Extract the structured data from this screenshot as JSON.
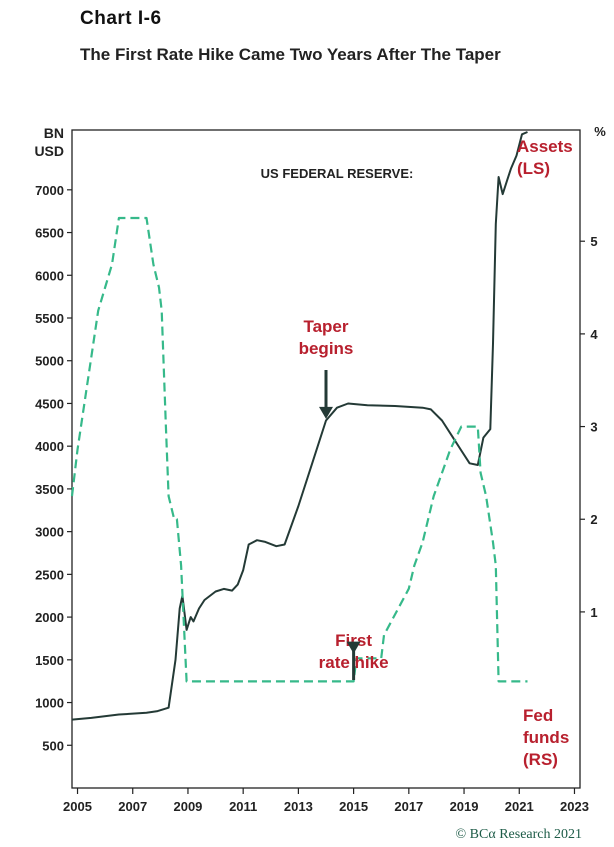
{
  "header": {
    "label": "Chart I-6",
    "title": "The First Rate Hike Came Two Years After The Taper"
  },
  "credit": "© BCα Research 2021",
  "chart_data": {
    "type": "line",
    "title": "US FEDERAL RESERVE:",
    "left_axis": {
      "unit": "BN USD",
      "ylim": [
        0,
        7700
      ],
      "ticks": [
        500,
        1000,
        1500,
        2000,
        2500,
        3000,
        3500,
        4000,
        4500,
        5000,
        5500,
        6000,
        6500,
        7000
      ]
    },
    "right_axis": {
      "unit": "%",
      "ylim": [
        -0.9,
        6.2
      ],
      "ticks": [
        1,
        2,
        3,
        4,
        5
      ]
    },
    "x_axis": {
      "xlim": [
        2004.8,
        2023.2
      ],
      "ticks": [
        2005,
        2007,
        2009,
        2011,
        2013,
        2015,
        2017,
        2019,
        2021,
        2023
      ]
    },
    "series": [
      {
        "name": "Assets (LS)",
        "axis": "left",
        "style": "solid",
        "color": "#243a36",
        "x": [
          2004.8,
          2005.5,
          2006.5,
          2007.5,
          2007.9,
          2008.3,
          2008.55,
          2008.7,
          2008.8,
          2008.95,
          2009.1,
          2009.2,
          2009.4,
          2009.6,
          2010.0,
          2010.3,
          2010.6,
          2010.8,
          2011.0,
          2011.2,
          2011.5,
          2011.8,
          2012.2,
          2012.5,
          2013.0,
          2013.5,
          2014.0,
          2014.4,
          2014.8,
          2015.5,
          2016.5,
          2017.5,
          2017.8,
          2018.2,
          2018.6,
          2018.9,
          2019.2,
          2019.5,
          2019.7,
          2019.95,
          2020.05,
          2020.15,
          2020.25,
          2020.4,
          2020.55,
          2020.7,
          2020.9,
          2021.1,
          2021.3
        ],
        "y": [
          800,
          820,
          860,
          880,
          900,
          940,
          1500,
          2100,
          2250,
          1850,
          2000,
          1950,
          2100,
          2200,
          2300,
          2330,
          2310,
          2380,
          2550,
          2850,
          2900,
          2880,
          2830,
          2850,
          3300,
          3800,
          4300,
          4450,
          4500,
          4480,
          4470,
          4450,
          4430,
          4300,
          4100,
          3950,
          3800,
          3780,
          4100,
          4200,
          5200,
          6600,
          7150,
          6950,
          7100,
          7250,
          7400,
          7650,
          7900
        ]
      },
      {
        "name": "Fed funds (RS)",
        "axis": "right",
        "style": "dashed",
        "color": "#36b98a",
        "x": [
          2004.8,
          2005.0,
          2005.25,
          2005.5,
          2005.75,
          2006.0,
          2006.25,
          2006.5,
          2007.0,
          2007.5,
          2007.75,
          2007.95,
          2008.05,
          2008.2,
          2008.3,
          2008.5,
          2008.6,
          2008.75,
          2008.95,
          2015.0,
          2015.1,
          2016.0,
          2016.1,
          2017.0,
          2017.2,
          2017.5,
          2017.9,
          2018.2,
          2018.5,
          2018.9,
          2019.5,
          2019.6,
          2019.8,
          2020.05,
          2020.15,
          2020.25,
          2021.3
        ],
        "y": [
          2.25,
          2.75,
          3.25,
          3.75,
          4.25,
          4.5,
          4.75,
          5.25,
          5.25,
          5.25,
          4.75,
          4.5,
          4.25,
          3.0,
          2.25,
          2.0,
          2.0,
          1.5,
          0.25,
          0.25,
          0.5,
          0.5,
          0.75,
          1.25,
          1.5,
          1.75,
          2.25,
          2.5,
          2.75,
          3.0,
          3.0,
          2.5,
          2.25,
          1.75,
          1.5,
          0.25,
          0.25
        ]
      }
    ],
    "annotations": [
      {
        "text": "Taper\nbegins",
        "x": 2014.0,
        "color": "#b8202e",
        "arrow_to_y": 4320,
        "axis": "left"
      },
      {
        "text": "First\nrate hike",
        "x": 2015.0,
        "color": "#b8202e",
        "arrow_to_y": 0.55,
        "axis": "right"
      },
      {
        "text": "Assets\n(LS)",
        "color": "#b8202e"
      },
      {
        "text": "Fed\nfunds\n(RS)",
        "color": "#b8202e"
      }
    ],
    "grid": false
  }
}
